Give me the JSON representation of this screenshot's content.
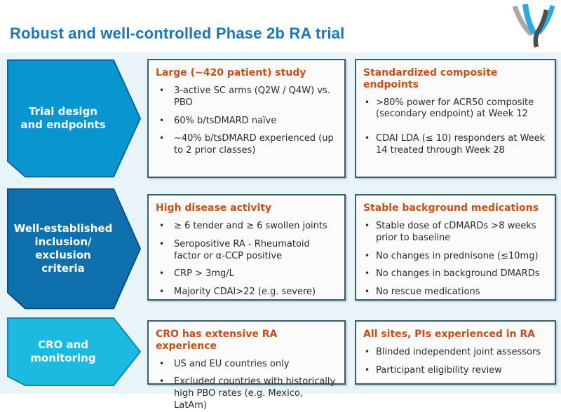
{
  "slide": {
    "title": "Robust and well-controlled Phase 2b RA trial"
  },
  "colors": {
    "title_text": "#1B75B8",
    "content_background": "#E9F4F9",
    "box_border": "#3D5D6B",
    "box_background": "#FBFBFB",
    "box_header_text": "#C0511D",
    "body_text": "#2B2B2B",
    "logo_cyan": "#29ABE2",
    "logo_gray": "#A6A8AB",
    "logo_dark_gray": "#4D4E50"
  },
  "rows": [
    {
      "arrow": {
        "label": "Trial design\nand endpoints",
        "fill": "#0995CE",
        "stroke": "#0D649C"
      },
      "boxes": [
        {
          "title": "Large (~420 patient) study",
          "bullets": [
            "3-active SC arms (Q2W / Q4W) vs. PBO",
            "60% b/tsDMARD naïve",
            "~40% b/tsDMARD experienced (up to 2 prior classes)"
          ]
        },
        {
          "title": "Standardized composite endpoints",
          "bullets": [
            ">80% power for ACR50 composite (secondary endpoint) at Week 12",
            "CDAI LDA (≤ 10) responders at Week 14 treated through Week 28"
          ]
        }
      ]
    },
    {
      "arrow": {
        "label": "Well-established\ninclusion/\nexclusion\ncriteria",
        "fill": "#0F70AE",
        "stroke": "#0A4E7E"
      },
      "boxes": [
        {
          "title": "High disease activity",
          "bullets": [
            "≥ 6 tender and ≥ 6 swollen joints",
            "Seropositive RA - Rheumatoid factor or α-CCP positive",
            "CRP > 3mg/L",
            "Majority CDAI>22 (e.g. severe)"
          ]
        },
        {
          "title": "Stable background medications",
          "bullets": [
            "Stable dose of cDMARDs >8 weeks prior to baseline",
            "No changes in prednisone (≤10mg)",
            "No changes in background DMARDs",
            "No rescue medications"
          ]
        }
      ]
    },
    {
      "arrow": {
        "label": "CRO and\nmonitoring",
        "fill": "#1CBAE0",
        "stroke": "#1186A8"
      },
      "boxes": [
        {
          "title": "CRO has extensive RA experience",
          "bullets": [
            "US and EU countries only",
            "Excluded countries with historically high PBO rates (e.g. Mexico, LatAm)"
          ]
        },
        {
          "title": "All sites, PIs experienced in RA",
          "bullets": [
            "Blinded independent joint assessors",
            "Participant eligibility review"
          ]
        }
      ]
    }
  ]
}
